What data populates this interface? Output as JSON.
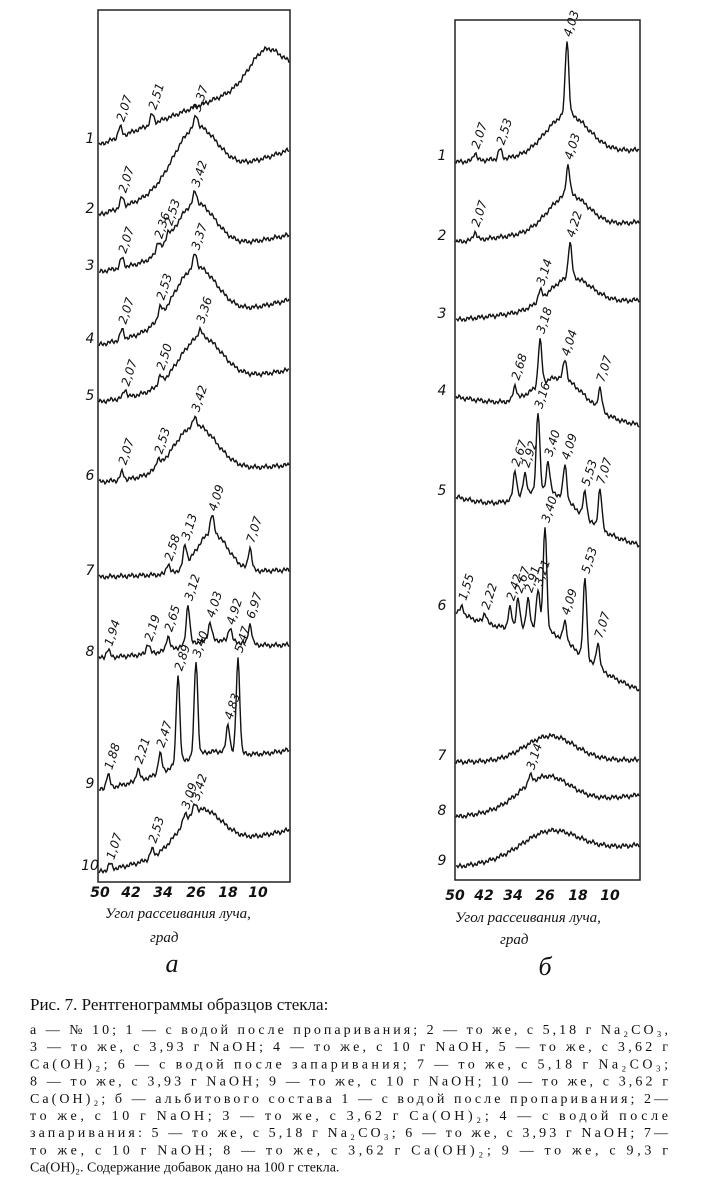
{
  "panels": [
    {
      "label": "а",
      "axis_title": [
        "Угол рассеивания луча,",
        "град"
      ],
      "ticks": [
        "50",
        "42",
        "34",
        "26",
        "18",
        "10"
      ],
      "curves": [
        {
          "number": "1",
          "peaks": [
            "2,07",
            "2,51"
          ]
        },
        {
          "number": "2",
          "peaks": [
            "2,07",
            "3,37"
          ]
        },
        {
          "number": "3",
          "peaks": [
            "2,07",
            "2,36",
            "2,53",
            "3,42"
          ]
        },
        {
          "number": "4",
          "peaks": [
            "2,07",
            "2,53",
            "3,37"
          ]
        },
        {
          "number": "5",
          "peaks": [
            "2,07",
            "2,50",
            "3,36"
          ]
        },
        {
          "number": "6",
          "peaks": [
            "2,07",
            "2,53",
            "3,42"
          ]
        },
        {
          "number": "7",
          "peaks": [
            "2,58",
            "3,13",
            "4,09",
            "7,07"
          ]
        },
        {
          "number": "8",
          "peaks": [
            "1,94",
            "2,19",
            "2,65",
            "3,12",
            "4,03",
            "4,92",
            "6,97"
          ]
        },
        {
          "number": "9",
          "peaks": [
            "1,88",
            "2,21",
            "2,47",
            "2,89",
            "3,40",
            "4,83",
            "5,47"
          ]
        },
        {
          "number": "10",
          "peaks": [
            "1,07",
            "2,53",
            "3,09",
            "3,42"
          ]
        }
      ]
    },
    {
      "label": "б",
      "axis_title": [
        "Угол рассеивания луча,",
        "град"
      ],
      "ticks": [
        "50",
        "42",
        "34",
        "26",
        "18",
        "10"
      ],
      "curves": [
        {
          "number": "1",
          "peaks": [
            "2,07",
            "2,53",
            "4,03"
          ]
        },
        {
          "number": "2",
          "peaks": [
            "2,07",
            "4,03"
          ]
        },
        {
          "number": "3",
          "peaks": [
            "3,14",
            "4,22"
          ]
        },
        {
          "number": "4",
          "peaks": [
            "2,68",
            "3,18",
            "4,04",
            "7,07"
          ]
        },
        {
          "number": "5",
          "peaks": [
            "2,67",
            "2,92",
            "3,16",
            "3,40",
            "4,09",
            "5,53",
            "7,07"
          ]
        },
        {
          "number": "6",
          "peaks": [
            "1,55",
            "2,22",
            "2,42",
            "2,67",
            "2,91",
            "3,21",
            "3,40",
            "4,09",
            "5,53",
            "7,07"
          ]
        },
        {
          "number": "7",
          "peaks": []
        },
        {
          "number": "8",
          "peaks": [
            "3,14"
          ]
        },
        {
          "number": "9",
          "peaks": []
        }
      ]
    }
  ],
  "caption": {
    "title": "Рис. 7. Рентгенограммы образцов стекла:",
    "lines": [
      "а — № 10; 1 — с водой после пропаривания; 2 — то же, с 5,18 г Na₂CO₃,",
      "3 — то же, с 3,93 г NaOH; 4 — то же, с 10 г NaOH, 5 — то же, с 3,62 г",
      "Ca(OH)₂; 6 — с водой после запаривания; 7 — то же, с 5,18 г Na₂CO₃;",
      "8 — то же, с 3,93 г NaOH; 9 — то же, с 10 г NaOH; 10 — то же, с 3,62 г",
      "Ca(OH)₂; б — альбитового состава 1 — с водой после пропаривания; 2—",
      "то же, с 10 г NaOH; 3 — то же, с 3,62 г Ca(OH)₂; 4 — с водой после",
      "запаривания: 5 — то же, с 5,18 г Na₂CO₃; 6 — то же, с 3,93 г NaOH; 7—",
      "то же, с 10 г NaOH; 8 — то же, с 3,62 г Ca(OH)₂; 9 — то же, с 9,3 г",
      "Ca(OH)₂. Содержание добавок дано на 100 г стекла."
    ]
  }
}
